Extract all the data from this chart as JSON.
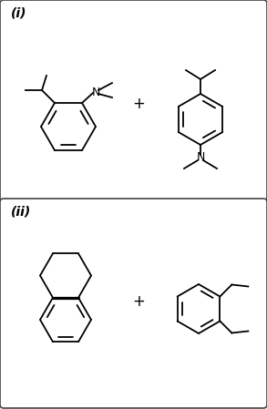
{
  "background": "#ffffff",
  "line_color": "#000000",
  "label_i": "(i)",
  "label_ii": "(ii)",
  "plus_symbol": "+",
  "font_size_label": 10,
  "font_size_N": 9,
  "lw": 1.3
}
